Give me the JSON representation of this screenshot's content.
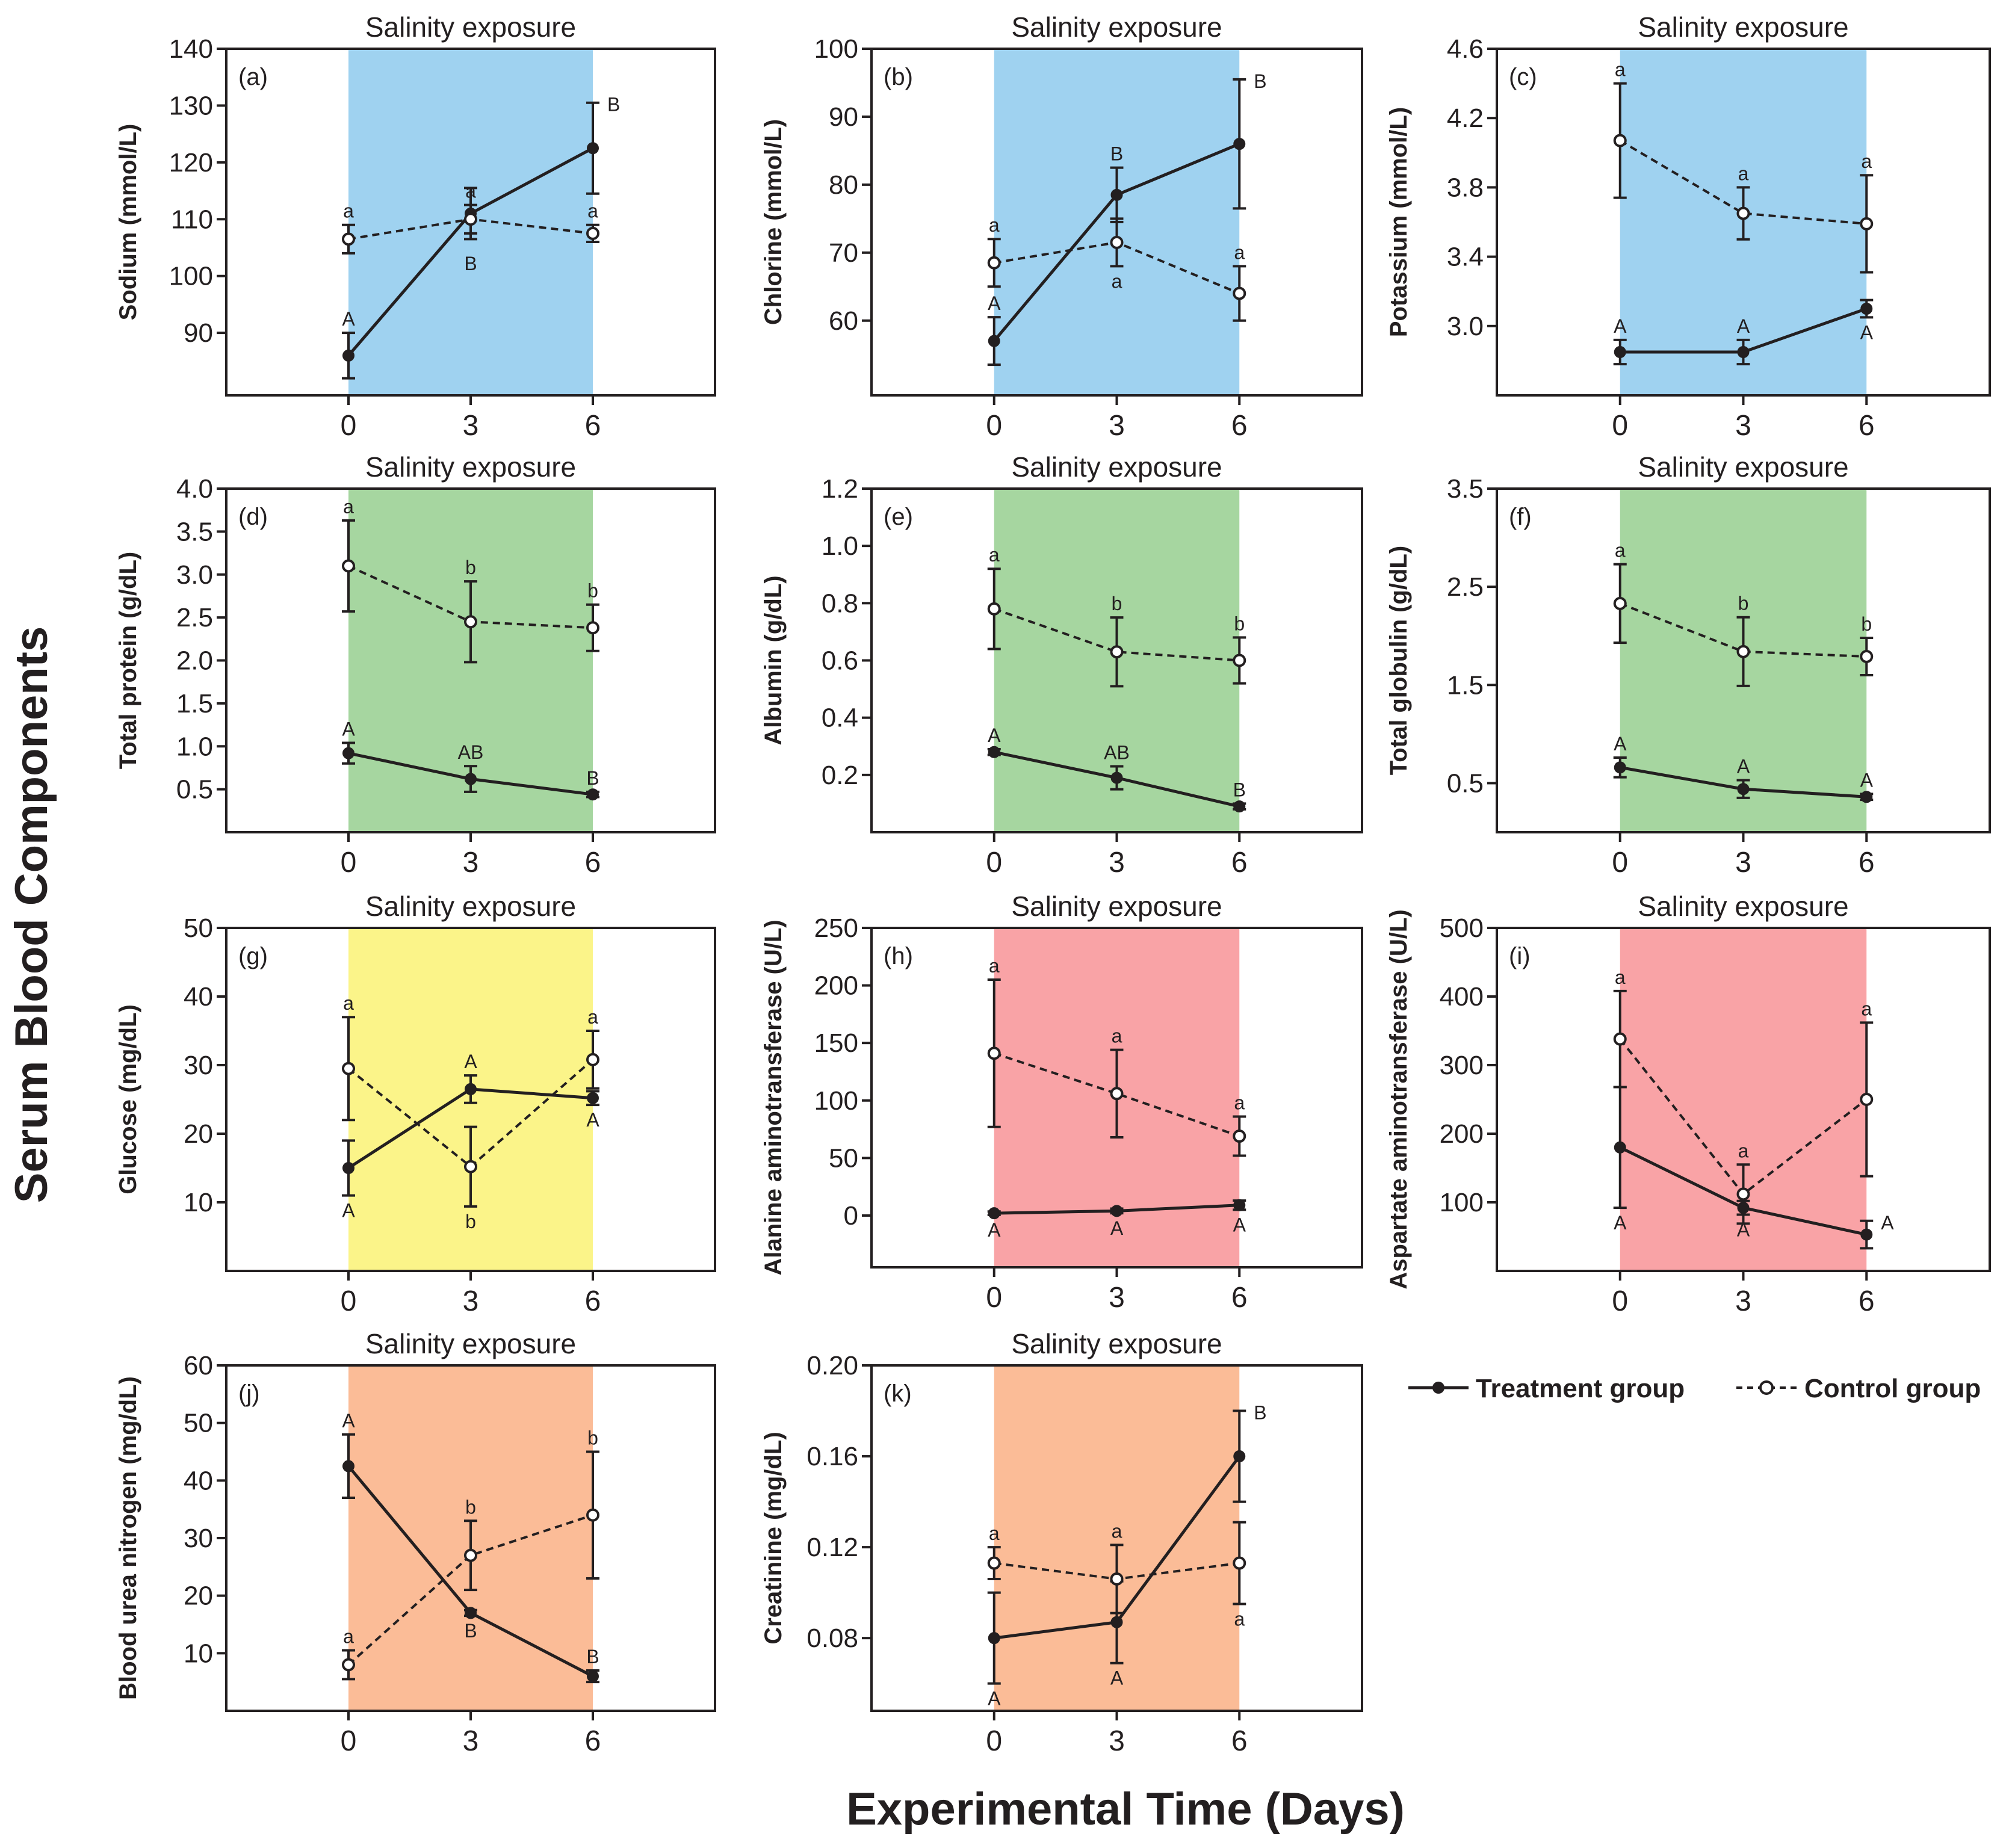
{
  "figure": {
    "y_label": "Serum Blood Components",
    "x_label": "Experimental Time (Days)"
  },
  "legend": {
    "treatment_label": "Treatment group",
    "control_label": "Control group"
  },
  "colors": {
    "blue": "#9fd2f0",
    "green": "#a6d6a0",
    "yellow": "#fbf489",
    "red": "#f9a3a6",
    "orange": "#fbbc97",
    "ink": "#231f20"
  },
  "chart_data": [
    {
      "id": "a",
      "letter": "(a)",
      "type": "line",
      "title": "Salinity exposure",
      "ylabel": "Sodium (mmol/L)",
      "shade": "blue",
      "ylim": [
        79,
        140
      ],
      "yticks": [
        90,
        100,
        110,
        120,
        130,
        140
      ],
      "ytick_labels": [
        "90",
        "100",
        "110",
        "120",
        "130",
        "140"
      ],
      "x": [
        0,
        3,
        6
      ],
      "xlim": [
        -3,
        9
      ],
      "series": [
        {
          "name": "Treatment group",
          "style": "solid",
          "values": [
            86,
            111,
            122.5
          ],
          "errors": [
            4,
            4.5,
            8
          ],
          "labels": [
            "A",
            "",
            "B"
          ],
          "label_pos": [
            "above",
            "above",
            "right"
          ]
        },
        {
          "name": "Control group",
          "style": "dashed",
          "values": [
            106.5,
            110,
            107.5
          ],
          "errors": [
            2.5,
            2.5,
            1.5
          ],
          "labels": [
            "a",
            "a",
            "a"
          ],
          "label_pos": [
            "above",
            "above",
            "above"
          ]
        }
      ],
      "annotations": [
        {
          "x": 3,
          "y": 102.5,
          "text": "B"
        }
      ]
    },
    {
      "id": "b",
      "letter": "(b)",
      "type": "line",
      "title": "Salinity exposure",
      "ylabel": "Chlorine (mmol/L)",
      "shade": "blue",
      "ylim": [
        49,
        100
      ],
      "yticks": [
        60,
        70,
        80,
        90,
        100
      ],
      "ytick_labels": [
        "60",
        "70",
        "80",
        "90",
        "100"
      ],
      "x": [
        0,
        3,
        6
      ],
      "xlim": [
        -3,
        9
      ],
      "series": [
        {
          "name": "Treatment group",
          "style": "solid",
          "values": [
            57,
            78.5,
            86
          ],
          "errors": [
            3.5,
            4,
            9.5
          ],
          "labels": [
            "A",
            "B",
            "B"
          ],
          "label_pos": [
            "above",
            "above",
            "right"
          ]
        },
        {
          "name": "Control group",
          "style": "dashed",
          "values": [
            68.5,
            71.5,
            64
          ],
          "errors": [
            3.5,
            3.5,
            4
          ],
          "labels": [
            "a",
            "a",
            "a"
          ],
          "label_pos": [
            "above",
            "below",
            "above"
          ]
        }
      ],
      "annotations": []
    },
    {
      "id": "c",
      "letter": "(c)",
      "type": "line",
      "title": "Salinity exposure",
      "ylabel": "Potassium (mmol/L)",
      "shade": "blue",
      "ylim": [
        2.6,
        4.6
      ],
      "yticks": [
        3.0,
        3.4,
        3.8,
        4.2,
        4.6
      ],
      "ytick_labels": [
        "3.0",
        "3.4",
        "3.8",
        "4.2",
        "4.6"
      ],
      "x": [
        0,
        3,
        6
      ],
      "xlim": [
        -3,
        9
      ],
      "series": [
        {
          "name": "Treatment group",
          "style": "solid",
          "values": [
            2.85,
            2.85,
            3.1
          ],
          "errors": [
            0.07,
            0.07,
            0.05
          ],
          "labels": [
            "A",
            "A",
            "A"
          ],
          "label_pos": [
            "above",
            "above",
            "below"
          ]
        },
        {
          "name": "Control group",
          "style": "dashed",
          "values": [
            4.07,
            3.65,
            3.59
          ],
          "errors": [
            0.33,
            0.15,
            0.28
          ],
          "labels": [
            "a",
            "a",
            "a"
          ],
          "label_pos": [
            "above",
            "above",
            "above"
          ]
        }
      ],
      "annotations": []
    },
    {
      "id": "d",
      "letter": "(d)",
      "type": "line",
      "title": "Salinity exposure",
      "ylabel": "Total protein (g/dL)",
      "shade": "green",
      "ylim": [
        0.0,
        4.0
      ],
      "yticks": [
        0.5,
        1.0,
        1.5,
        2.0,
        2.5,
        3.0,
        3.5,
        4.0
      ],
      "ytick_labels": [
        "0.5",
        "1.0",
        "1.5",
        "2.0",
        "2.5",
        "3.0",
        "3.5",
        "4.0"
      ],
      "x": [
        0,
        3,
        6
      ],
      "xlim": [
        -3,
        9
      ],
      "series": [
        {
          "name": "Treatment group",
          "style": "solid",
          "values": [
            0.92,
            0.62,
            0.44
          ],
          "errors": [
            0.12,
            0.15,
            0.03
          ],
          "labels": [
            "A",
            "AB",
            "B"
          ],
          "label_pos": [
            "above",
            "above",
            "above"
          ]
        },
        {
          "name": "Control group",
          "style": "dashed",
          "values": [
            3.1,
            2.45,
            2.38
          ],
          "errors": [
            0.53,
            0.47,
            0.27
          ],
          "labels": [
            "a",
            "b",
            "b"
          ],
          "label_pos": [
            "above",
            "above",
            "above"
          ]
        }
      ],
      "annotations": []
    },
    {
      "id": "e",
      "letter": "(e)",
      "type": "line",
      "title": "Salinity exposure",
      "ylabel": "Albumin (g/dL)",
      "shade": "green",
      "ylim": [
        0.0,
        1.2
      ],
      "yticks": [
        0.2,
        0.4,
        0.6,
        0.8,
        1.0,
        1.2
      ],
      "ytick_labels": [
        "0.2",
        "0.4",
        "0.6",
        "0.8",
        "1.0",
        "1.2"
      ],
      "x": [
        0,
        3,
        6
      ],
      "xlim": [
        -3,
        9
      ],
      "series": [
        {
          "name": "Treatment group",
          "style": "solid",
          "values": [
            0.28,
            0.19,
            0.09
          ],
          "errors": [
            0.01,
            0.04,
            0.01
          ],
          "labels": [
            "A",
            "AB",
            "B"
          ],
          "label_pos": [
            "above",
            "above",
            "above"
          ]
        },
        {
          "name": "Control group",
          "style": "dashed",
          "values": [
            0.78,
            0.63,
            0.6
          ],
          "errors": [
            0.14,
            0.12,
            0.08
          ],
          "labels": [
            "a",
            "b",
            "b"
          ],
          "label_pos": [
            "above",
            "above",
            "above"
          ]
        }
      ],
      "annotations": []
    },
    {
      "id": "f",
      "letter": "(f)",
      "type": "line",
      "title": "Salinity exposure",
      "ylabel": "Total globulin (g/dL)",
      "shade": "green",
      "ylim": [
        0.0,
        3.5
      ],
      "yticks": [
        0.5,
        1.5,
        2.5,
        3.5
      ],
      "ytick_labels": [
        "0.5",
        "1.5",
        "2.5",
        "3.5"
      ],
      "x": [
        0,
        3,
        6
      ],
      "xlim": [
        -3,
        9
      ],
      "series": [
        {
          "name": "Treatment group",
          "style": "solid",
          "values": [
            0.66,
            0.44,
            0.36
          ],
          "errors": [
            0.1,
            0.09,
            0.03
          ],
          "labels": [
            "A",
            "A",
            "A"
          ],
          "label_pos": [
            "above",
            "above",
            "above"
          ]
        },
        {
          "name": "Control group",
          "style": "dashed",
          "values": [
            2.33,
            1.84,
            1.79
          ],
          "errors": [
            0.4,
            0.35,
            0.19
          ],
          "labels": [
            "a",
            "b",
            "b"
          ],
          "label_pos": [
            "above",
            "above",
            "above"
          ]
        }
      ],
      "annotations": []
    },
    {
      "id": "g",
      "letter": "(g)",
      "type": "line",
      "title": "Salinity exposure",
      "ylabel": "Glucose (mg/dL)",
      "shade": "yellow",
      "ylim": [
        0,
        50
      ],
      "yticks": [
        10,
        20,
        30,
        40,
        50
      ],
      "ytick_labels": [
        "10",
        "20",
        "30",
        "40",
        "50"
      ],
      "x": [
        0,
        3,
        6
      ],
      "xlim": [
        -3,
        9
      ],
      "series": [
        {
          "name": "Treatment group",
          "style": "solid",
          "values": [
            15,
            26.5,
            25.2
          ],
          "errors": [
            4,
            2,
            1
          ],
          "labels": [
            "A",
            "A",
            "A"
          ],
          "label_pos": [
            "below",
            "above",
            "below"
          ]
        },
        {
          "name": "Control group",
          "style": "dashed",
          "values": [
            29.5,
            15.2,
            30.8
          ],
          "errors": [
            7.5,
            5.8,
            4.2
          ],
          "labels": [
            "a",
            "b",
            "a"
          ],
          "label_pos": [
            "above",
            "below",
            "above"
          ]
        }
      ],
      "annotations": []
    },
    {
      "id": "h",
      "letter": "(h)",
      "type": "line",
      "title": "Salinity exposure",
      "ylabel": "Alanine aminotransferase (U/L)",
      "shade": "red",
      "ylim": [
        -45,
        250
      ],
      "yticks": [
        0,
        50,
        100,
        150,
        200,
        250
      ],
      "ytick_labels": [
        "0",
        "50",
        "100",
        "150",
        "200",
        "250"
      ],
      "x": [
        0,
        3,
        6
      ],
      "xlim": [
        -3,
        9
      ],
      "series": [
        {
          "name": "Treatment group",
          "style": "solid",
          "values": [
            2,
            4,
            9
          ],
          "errors": [
            1.5,
            2,
            4
          ],
          "labels": [
            "A",
            "A",
            "A"
          ],
          "label_pos": [
            "below",
            "below",
            "below"
          ]
        },
        {
          "name": "Control group",
          "style": "dashed",
          "values": [
            141,
            106,
            69
          ],
          "errors": [
            64,
            38,
            17
          ],
          "labels": [
            "a",
            "a",
            "a"
          ],
          "label_pos": [
            "above",
            "above",
            "above"
          ]
        }
      ],
      "annotations": []
    },
    {
      "id": "i",
      "letter": "(i)",
      "type": "line",
      "title": "Salinity exposure",
      "ylabel": "Aspartate aminotransferase (U/L)",
      "shade": "red",
      "ylim": [
        0,
        500
      ],
      "yticks": [
        100,
        200,
        300,
        400,
        500
      ],
      "ytick_labels": [
        "100",
        "200",
        "300",
        "400",
        "500"
      ],
      "x": [
        0,
        3,
        6
      ],
      "xlim": [
        -3,
        9
      ],
      "series": [
        {
          "name": "Treatment group",
          "style": "solid",
          "values": [
            180,
            92,
            53
          ],
          "errors": [
            88,
            10,
            20
          ],
          "labels": [
            "A",
            "A",
            "A"
          ],
          "label_pos": [
            "below",
            "below",
            "right"
          ]
        },
        {
          "name": "Control group",
          "style": "dashed",
          "values": [
            338,
            112,
            250
          ],
          "errors": [
            70,
            43,
            112
          ],
          "labels": [
            "a",
            "a",
            "a"
          ],
          "label_pos": [
            "above",
            "above",
            "above"
          ]
        }
      ],
      "annotations": []
    },
    {
      "id": "j",
      "letter": "(j)",
      "type": "line",
      "title": "Salinity exposure",
      "ylabel": "Blood urea nitrogen (mg/dL)",
      "shade": "orange",
      "ylim": [
        0,
        60
      ],
      "yticks": [
        10,
        20,
        30,
        40,
        50,
        60
      ],
      "ytick_labels": [
        "10",
        "20",
        "30",
        "40",
        "50",
        "60"
      ],
      "x": [
        0,
        3,
        6
      ],
      "xlim": [
        -3,
        9
      ],
      "series": [
        {
          "name": "Treatment group",
          "style": "solid",
          "values": [
            42.5,
            17,
            6
          ],
          "errors": [
            5.5,
            0.5,
            1
          ],
          "labels": [
            "A",
            "B",
            "B"
          ],
          "label_pos": [
            "above",
            "below",
            "above"
          ]
        },
        {
          "name": "Control group",
          "style": "dashed",
          "values": [
            8,
            27,
            34
          ],
          "errors": [
            2.5,
            6,
            11
          ],
          "labels": [
            "a",
            "b",
            "b"
          ],
          "label_pos": [
            "above",
            "above",
            "above"
          ]
        }
      ],
      "annotations": []
    },
    {
      "id": "k",
      "letter": "(k)",
      "type": "line",
      "title": "Salinity exposure",
      "ylabel": "Creatinine (mg/dL)",
      "shade": "orange",
      "ylim": [
        0.048,
        0.2
      ],
      "yticks": [
        0.08,
        0.12,
        0.16,
        0.2
      ],
      "ytick_labels": [
        "0.08",
        "0.12",
        "0.16",
        "0.20"
      ],
      "x": [
        0,
        3,
        6
      ],
      "xlim": [
        -3,
        9
      ],
      "series": [
        {
          "name": "Treatment group",
          "style": "solid",
          "values": [
            0.08,
            0.087,
            0.16
          ],
          "errors": [
            0.02,
            0.018,
            0.02
          ],
          "labels": [
            "A",
            "A",
            "B"
          ],
          "label_pos": [
            "below",
            "below",
            "right"
          ]
        },
        {
          "name": "Control group",
          "style": "dashed",
          "values": [
            0.113,
            0.106,
            0.113
          ],
          "errors": [
            0.007,
            0.015,
            0.018
          ],
          "labels": [
            "a",
            "a",
            "a"
          ],
          "label_pos": [
            "above",
            "above",
            "below"
          ]
        }
      ],
      "annotations": []
    }
  ]
}
